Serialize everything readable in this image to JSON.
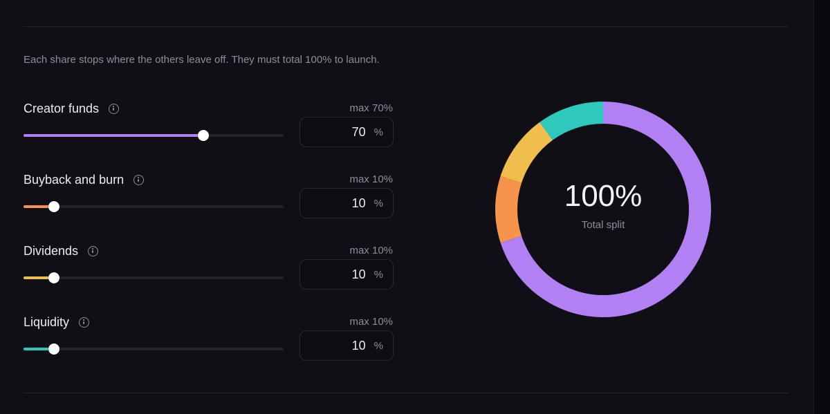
{
  "description": "Each share stops where the others leave off. They must total 100% to launch.",
  "unit": "%",
  "allocations": [
    {
      "label": "Creator funds",
      "max_label": "max 70%",
      "value": 70,
      "max": 70,
      "display": "70",
      "color": "#b180f2"
    },
    {
      "label": "Buyback and burn",
      "max_label": "max 10%",
      "value": 10,
      "max": 10,
      "display": "10",
      "color": "#f5944a"
    },
    {
      "label": "Dividends",
      "max_label": "max 10%",
      "value": 10,
      "max": 10,
      "display": "10",
      "color": "#f0be4c"
    },
    {
      "label": "Liquidity",
      "max_label": "max 10%",
      "value": 10,
      "max": 10,
      "display": "10",
      "color": "#2ec9bd"
    }
  ],
  "slider_scale_max": 100,
  "total": {
    "value": "100%",
    "label": "Total split"
  },
  "icons": {
    "info": "info-icon"
  }
}
